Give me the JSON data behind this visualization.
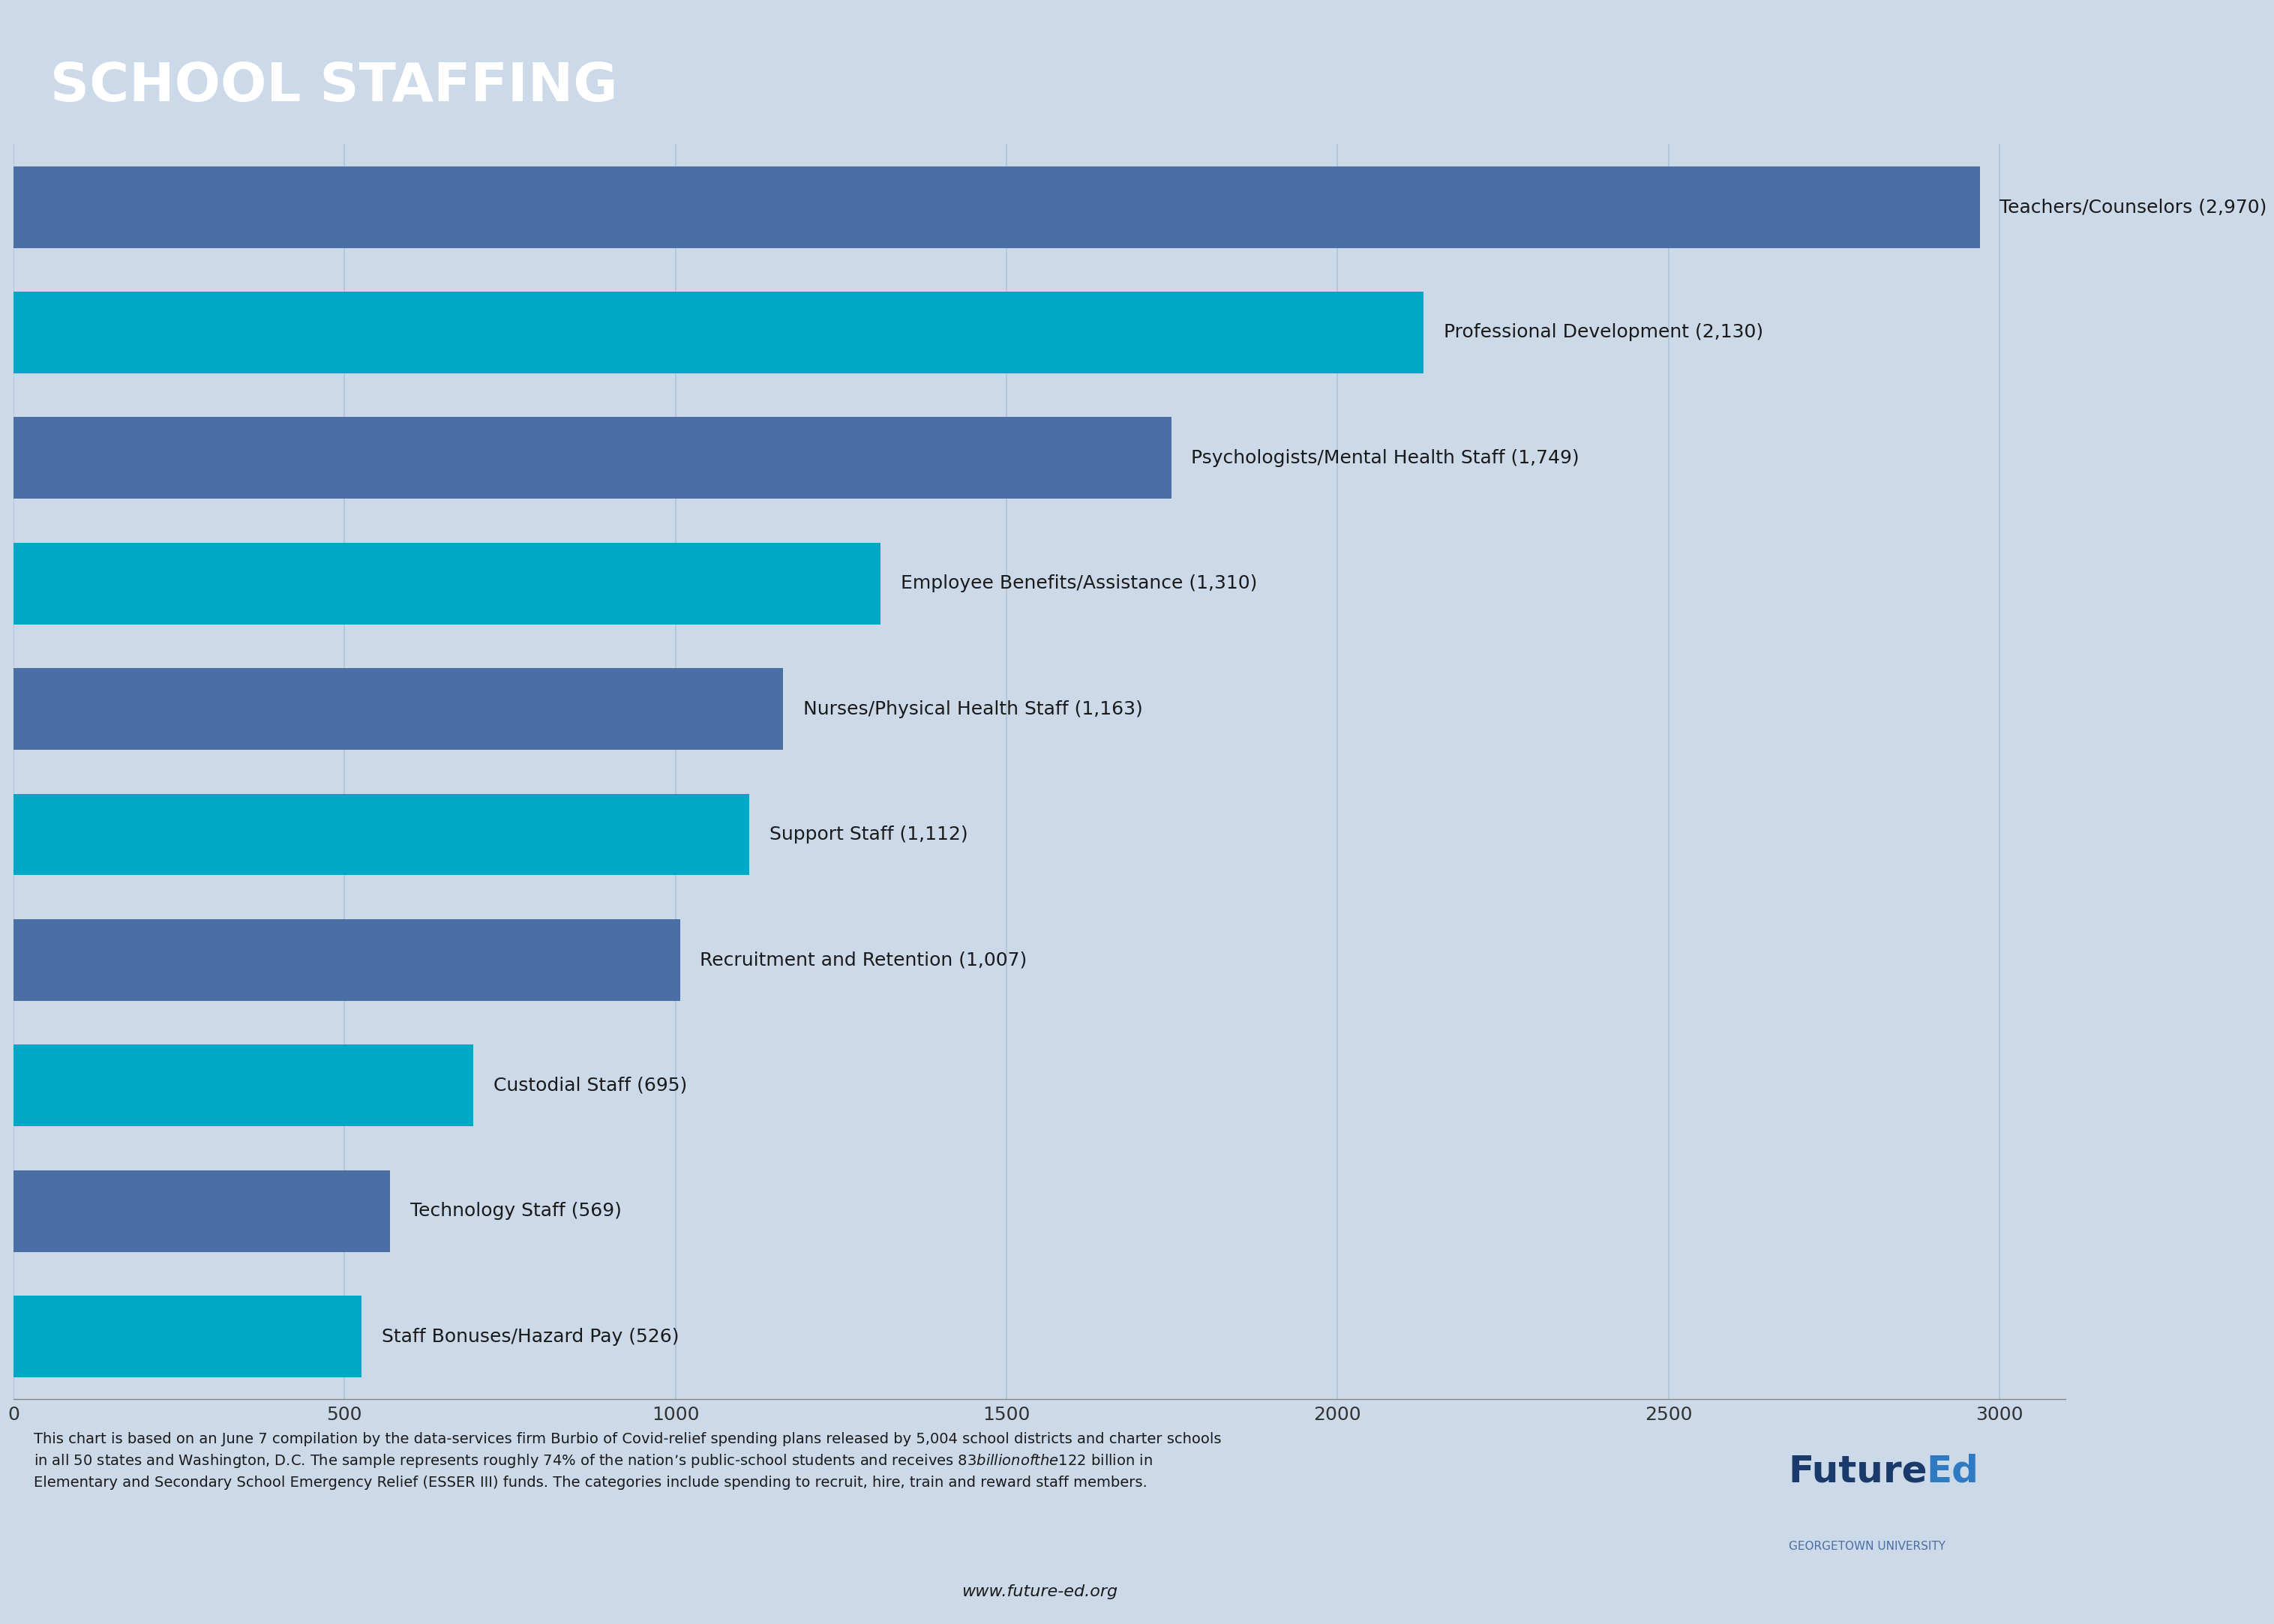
{
  "title": "SCHOOL STAFFING",
  "title_bg_color": "#0d2b4e",
  "title_text_color": "#ffffff",
  "chart_bg_color": "#ccd9e8",
  "outer_bg_color": "#ccd9e8",
  "categories": [
    "Teachers/Counselors (2,970)",
    "Professional Development (2,130)",
    "Psychologists/Mental Health Staff (1,749)",
    "Employee Benefits/Assistance (1,310)",
    "Nurses/Physical Health Staff (1,163)",
    "Support Staff (1,112)",
    "Recruitment and Retention (1,007)",
    "Custodial Staff (695)",
    "Technology Staff (569)",
    "Staff Bonuses/Hazard Pay (526)"
  ],
  "values": [
    2970,
    2130,
    1749,
    1310,
    1163,
    1112,
    1007,
    695,
    569,
    526
  ],
  "bar_colors": [
    "#4a6fa5",
    "#00a8c6",
    "#4a6fa5",
    "#00a8c6",
    "#4a6fa5",
    "#00a8c6",
    "#4a6fa5",
    "#00a8c6",
    "#4a6fa5",
    "#00a8c6"
  ],
  "xlim": [
    0,
    3000
  ],
  "xticks": [
    0,
    500,
    1000,
    1500,
    2000,
    2500,
    3000
  ],
  "grid_color": "#b0c4d8",
  "footnote": "This chart is based on an June 7 compilation by the data-services firm Burbio of Covid-relief spending plans released by 5,004 school districts and charter schools\nin all 50 states and Washington, D.C. The sample represents roughly 74% of the nation’s public-school students and receives $83 billion of the $122 billion in\nElementary and Secondary School Emergency Relief (ESSER III) funds. The categories include spending to recruit, hire, train and reward staff members.",
  "website": "www.future-ed.org",
  "logo_future_color": "#1a3a6b",
  "logo_ed_color": "#2e7bc4",
  "logo_georgetown_color": "#4a6fa5",
  "bar_label_fontsize": 18,
  "tick_fontsize": 18,
  "footnote_fontsize": 14,
  "website_fontsize": 16,
  "title_fontsize": 52,
  "logo_main_fontsize": 36,
  "logo_sub_fontsize": 11
}
